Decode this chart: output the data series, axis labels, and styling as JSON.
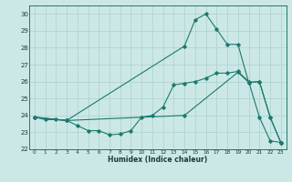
{
  "xlabel": "Humidex (Indice chaleur)",
  "xlim": [
    -0.5,
    23.5
  ],
  "ylim": [
    22,
    30.5
  ],
  "yticks": [
    22,
    23,
    24,
    25,
    26,
    27,
    28,
    29,
    30
  ],
  "xticks": [
    0,
    1,
    2,
    3,
    4,
    5,
    6,
    7,
    8,
    9,
    10,
    11,
    12,
    13,
    14,
    15,
    16,
    17,
    18,
    19,
    20,
    21,
    22,
    23
  ],
  "bg_color": "#cce8e6",
  "line_color": "#1a7a6e",
  "grid_color": "#aad0cc",
  "line1_x": [
    0,
    1,
    2,
    3,
    4,
    5,
    6,
    7,
    8,
    9,
    10,
    11,
    12,
    13,
    14,
    15,
    16,
    17,
    18,
    19,
    20,
    21,
    22,
    23
  ],
  "line1_y": [
    23.9,
    23.75,
    23.75,
    23.7,
    23.4,
    23.1,
    23.1,
    22.85,
    22.9,
    23.1,
    23.9,
    24.0,
    24.5,
    25.8,
    25.9,
    26.0,
    26.2,
    26.5,
    26.5,
    26.6,
    26.0,
    23.9,
    22.5,
    22.4
  ],
  "line2_x": [
    0,
    3,
    14,
    15,
    16,
    17,
    18,
    19,
    20,
    21,
    22,
    23
  ],
  "line2_y": [
    23.9,
    23.7,
    28.1,
    29.65,
    30.0,
    29.1,
    28.2,
    28.2,
    25.95,
    26.0,
    23.9,
    22.4
  ],
  "line3_x": [
    0,
    3,
    14,
    19,
    20,
    21,
    22,
    23
  ],
  "line3_y": [
    23.9,
    23.7,
    24.0,
    26.55,
    25.95,
    26.0,
    23.9,
    22.4
  ]
}
